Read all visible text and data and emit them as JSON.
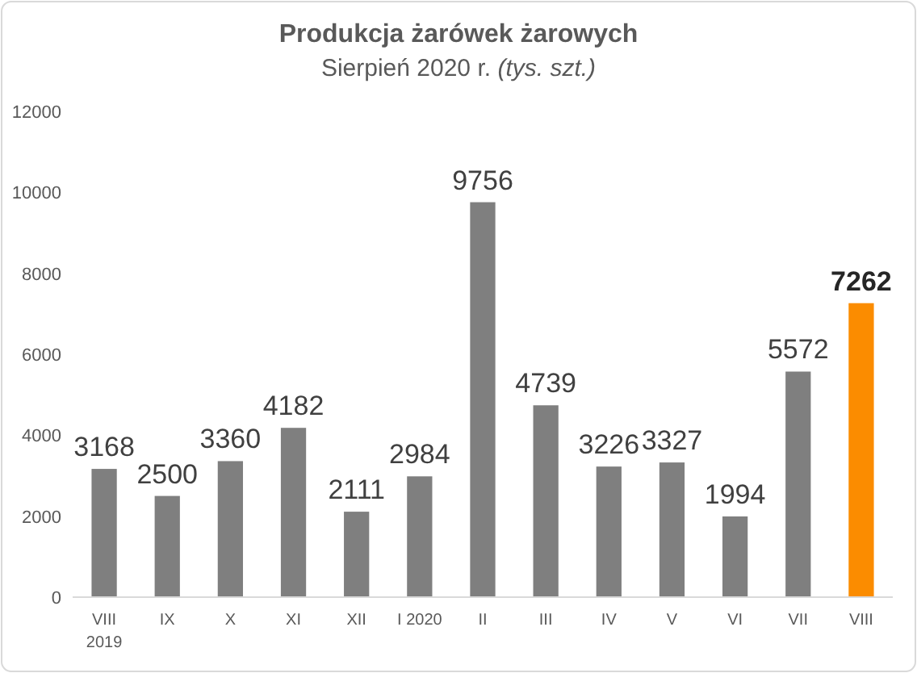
{
  "chart_data": {
    "type": "bar",
    "title": "Produkcja żarówek żarowych",
    "subtitle": "Sierpień 2020 r. (tys. szt.)",
    "categories": [
      "VIII\n2019",
      "IX",
      "X",
      "XI",
      "XII",
      "I 2020",
      "II",
      "III",
      "IV",
      "V",
      "VI",
      "VII",
      "VIII"
    ],
    "values": [
      3168,
      2500,
      3360,
      4182,
      2111,
      2984,
      9756,
      4739,
      3226,
      3327,
      1994,
      5572,
      7262
    ],
    "colors": [
      "#7f7f7f",
      "#7f7f7f",
      "#7f7f7f",
      "#7f7f7f",
      "#7f7f7f",
      "#7f7f7f",
      "#7f7f7f",
      "#7f7f7f",
      "#7f7f7f",
      "#7f7f7f",
      "#7f7f7f",
      "#7f7f7f",
      "#fb8c00"
    ],
    "ylim": [
      0,
      12000
    ],
    "yticks": [
      0,
      2000,
      4000,
      6000,
      8000,
      10000,
      12000
    ],
    "grid": false,
    "data_labels": true
  }
}
